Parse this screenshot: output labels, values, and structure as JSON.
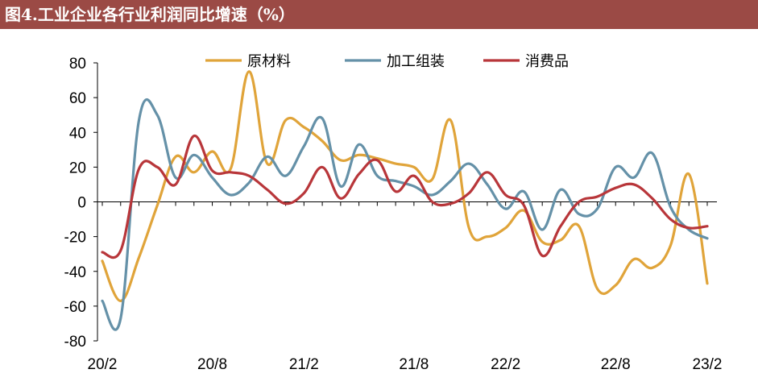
{
  "title": "图4.工业企业各行业利润同比增速（%）",
  "colors": {
    "title_bg": "#9b4a45",
    "原材料": "#e0a43a",
    "加工组装": "#6591a8",
    "消费品": "#b8363a"
  },
  "chart_data": {
    "type": "line",
    "title": "图4.工业企业各行业利润同比增速（%）",
    "xlabel": "",
    "ylabel": "",
    "ylim": [
      -80,
      80
    ],
    "yticks": [
      -80,
      -60,
      -40,
      -20,
      0,
      20,
      40,
      60,
      80
    ],
    "xticks": [
      "20/2",
      "20/8",
      "21/2",
      "21/8",
      "22/2",
      "22/8",
      "23/2"
    ],
    "x": [
      "20/2",
      "20/3",
      "20/4",
      "20/5",
      "20/6",
      "20/7",
      "20/8",
      "20/9",
      "20/10",
      "20/11",
      "20/12",
      "21/2",
      "21/3",
      "21/4",
      "21/5",
      "21/6",
      "21/7",
      "21/8",
      "21/9",
      "21/10",
      "21/11",
      "21/12",
      "22/2",
      "22/3",
      "22/4",
      "22/5",
      "22/6",
      "22/7",
      "22/8",
      "22/9",
      "22/10",
      "22/11",
      "22/12",
      "23/2"
    ],
    "grid": false,
    "legend": "top-center",
    "series": [
      {
        "name": "原材料",
        "values": [
          -34,
          -57,
          -32,
          -2,
          26,
          17,
          29,
          19,
          75,
          22,
          47,
          43,
          35,
          24,
          27,
          25,
          22,
          20,
          13,
          47,
          -15,
          -20,
          -15,
          -5,
          -23,
          -22,
          -14,
          -50,
          -48,
          -33,
          -38,
          -25,
          16,
          -47
        ]
      },
      {
        "name": "加工组装",
        "values": [
          -57,
          -67,
          47,
          50,
          14,
          27,
          14,
          4,
          11,
          26,
          15,
          32,
          48,
          9,
          33,
          15,
          12,
          9,
          4,
          12,
          22,
          10,
          -4,
          6,
          -16,
          7,
          -7,
          -4,
          20,
          14,
          28,
          -3,
          -16,
          -21
        ]
      },
      {
        "name": "消费品",
        "values": [
          -29,
          -28,
          19,
          20,
          10,
          38,
          18,
          17,
          15,
          7,
          -1,
          5,
          20,
          2,
          16,
          24,
          6,
          15,
          0,
          -1,
          5,
          17,
          4,
          -2,
          -31,
          -14,
          0,
          3,
          8,
          10,
          2,
          -10,
          -15,
          -14
        ]
      }
    ]
  }
}
